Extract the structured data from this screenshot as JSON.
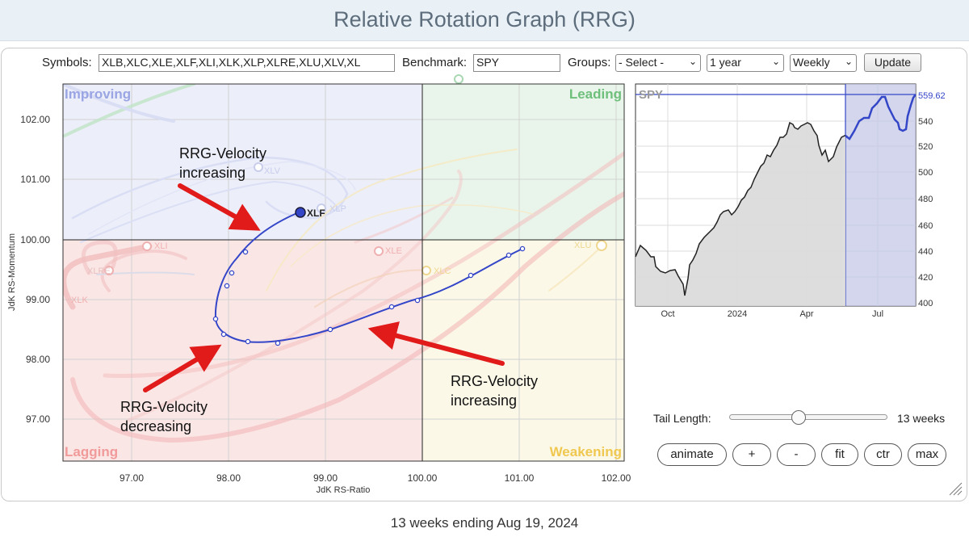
{
  "page_title": "Relative Rotation Graph (RRG)",
  "toolbar": {
    "symbols_label": "Symbols:",
    "symbols_value": "XLB,XLC,XLE,XLF,XLI,XLK,XLP,XLRE,XLU,XLV,XL",
    "benchmark_label": "Benchmark:",
    "benchmark_value": "SPY",
    "groups_label": "Groups:",
    "groups_value": "- Select -",
    "period_value": "1 year",
    "frequency_value": "Weekly",
    "update_label": "Update"
  },
  "rrg": {
    "quadrants": {
      "improving": "Improving",
      "leading": "Leading",
      "lagging": "Lagging",
      "weakening": "Weakening"
    },
    "x_axis_label": "JdK RS-Ratio",
    "y_axis_label": "JdK RS-Momentum",
    "x_ticks": [
      "97.00",
      "98.00",
      "99.00",
      "100.00",
      "101.00",
      "102.00"
    ],
    "y_ticks": [
      "102.00",
      "101.00",
      "100.00",
      "99.00",
      "98.00",
      "97.00"
    ],
    "highlighted_symbol": "XLF",
    "faded_labels": [
      "XLV",
      "XLP",
      "XLI",
      "XLE",
      "XLRE",
      "XLC",
      "XLU",
      "XLK"
    ],
    "annotations": {
      "top": "RRG-Velocity\nincreasing",
      "bottom_left": "RRG-Velocity\ndecreasing",
      "bottom_right": "RRG-Velocity\nincreasing"
    }
  },
  "benchmark_chart": {
    "symbol": "SPY",
    "last_value_label": "559.62",
    "y_ticks": [
      "540",
      "520",
      "500",
      "480",
      "460",
      "440",
      "420",
      "400"
    ],
    "x_ticks": [
      "Oct",
      "2024",
      "Apr",
      "Jul"
    ]
  },
  "controls": {
    "tail_length_label": "Tail Length:",
    "tail_length_value": "13 weeks",
    "tail_length_fraction": 0.44,
    "buttons": [
      "animate",
      "+",
      "-",
      "fit",
      "ctr",
      "max"
    ]
  },
  "footer_text": "13 weeks ending Aug 19, 2024",
  "colors": {
    "title_bg": "#e9f0f6",
    "improving": "#eceef9",
    "leading": "#e9f5ea",
    "lagging": "#fbe6e6",
    "weakening": "#fbf8e8",
    "xlf_tail": "#3446c8",
    "arrow": "#e11a1a"
  }
}
